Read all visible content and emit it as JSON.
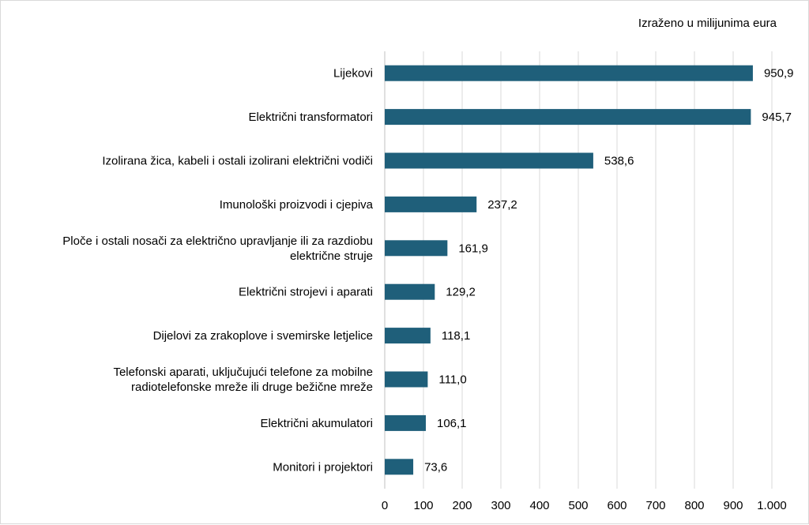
{
  "chart_data": {
    "type": "bar",
    "orientation": "horizontal",
    "unit_note": "Izraženo u milijunima eura",
    "categories": [
      [
        "Lijekovi"
      ],
      [
        "Električni transformatori"
      ],
      [
        "Izolirana žica, kabeli i ostali izolirani električni vodiči"
      ],
      [
        "Imunološki proizvodi i cjepiva"
      ],
      [
        "Ploče i ostali nosači za električno upravljanje ili za razdiobu",
        "električne struje"
      ],
      [
        "Električni strojevi i aparati"
      ],
      [
        "Dijelovi za zrakoplove i svemirske letjelice"
      ],
      [
        "Telefonski aparati, uključujući telefone za mobilne",
        "radiotelefonske mreže ili druge bežične mreže"
      ],
      [
        "Električni akumulatori"
      ],
      [
        "Monitori i projektori"
      ]
    ],
    "values": [
      950.9,
      945.7,
      538.6,
      237.2,
      161.9,
      129.2,
      118.1,
      111.0,
      106.1,
      73.6
    ],
    "value_labels": [
      "950,9",
      "945,7",
      "538,6",
      "237,2",
      "161,9",
      "129,2",
      "118,1",
      "111,0",
      "106,1",
      "73,6"
    ],
    "xlim": [
      0,
      1000
    ],
    "x_ticks": [
      0,
      100,
      200,
      300,
      400,
      500,
      600,
      700,
      800,
      900,
      1000
    ],
    "x_tick_labels": [
      "0",
      "100",
      "200",
      "300",
      "400",
      "500",
      "600",
      "700",
      "800",
      "900",
      "1.000"
    ],
    "grid": "vertical",
    "legend": "none",
    "bar_color": "#1f5f7a",
    "grid_color": "#d9d9d9"
  }
}
